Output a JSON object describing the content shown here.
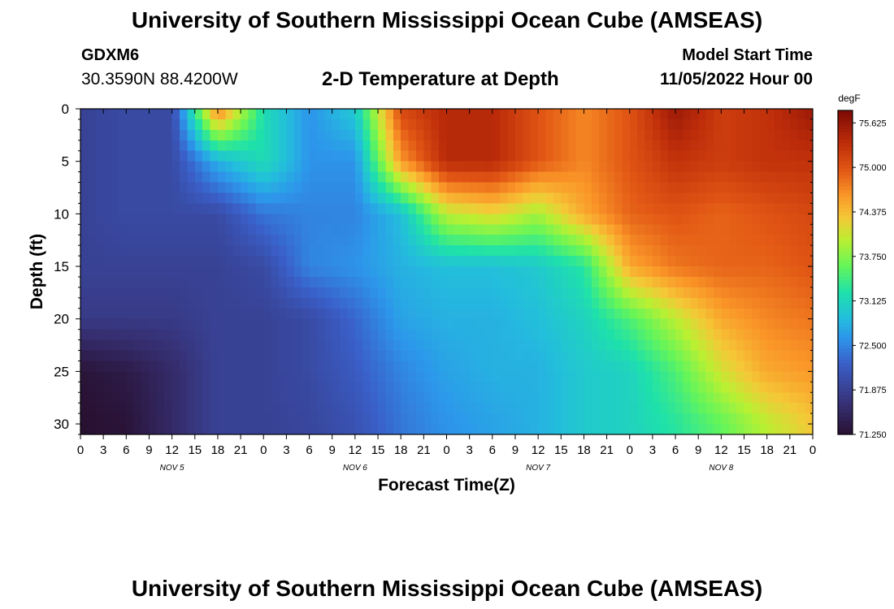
{
  "header": {
    "title": "University of Southern Mississippi Ocean Cube (AMSEAS)",
    "station_id": "GDXM6",
    "coordinates": "30.3590N  88.4200W",
    "subtitle": "2-D Temperature at Depth",
    "model_start_label": "Model Start Time",
    "model_start_value": "11/05/2022 Hour 00"
  },
  "footer": {
    "title": "University of Southern Mississippi Ocean Cube (AMSEAS)"
  },
  "chart_data": {
    "type": "heatmap",
    "title": "2-D Temperature at Depth",
    "xlabel": "Forecast Time(Z)",
    "ylabel": "Depth (ft)",
    "colorbar_label": "degF",
    "x_hours": [
      0,
      6,
      12,
      18,
      24,
      30,
      36,
      42,
      48,
      54,
      60,
      66,
      72,
      78,
      84,
      90,
      96
    ],
    "x_tick_labels": [
      "0",
      "3",
      "6",
      "9",
      "12",
      "15",
      "18",
      "21",
      "0",
      "3",
      "6",
      "9",
      "12",
      "15",
      "18",
      "21",
      "0",
      "3",
      "6",
      "9",
      "12",
      "15",
      "18",
      "21",
      "0",
      "3",
      "6",
      "9",
      "12",
      "15",
      "18",
      "21",
      "0"
    ],
    "day_labels": [
      "NOV 5",
      "NOV 6",
      "NOV 7",
      "NOV 8"
    ],
    "depths_ft": [
      0,
      5,
      10,
      15,
      20,
      25,
      30
    ],
    "y_ticks": [
      0,
      5,
      10,
      15,
      20,
      25,
      30
    ],
    "ylim": [
      0,
      31
    ],
    "xlim": [
      0,
      96
    ],
    "temperature_degF": [
      [
        71.9,
        72.0,
        72.0,
        74.8,
        73.2,
        72.6,
        73.0,
        75.1,
        75.4,
        75.4,
        75.0,
        74.7,
        75.0,
        75.6,
        75.2,
        75.3,
        75.6
      ],
      [
        71.9,
        72.0,
        72.0,
        72.8,
        73.2,
        72.6,
        72.6,
        74.6,
        75.4,
        75.4,
        75.0,
        74.7,
        75.0,
        75.3,
        75.2,
        75.3,
        75.3
      ],
      [
        71.9,
        72.0,
        72.0,
        72.0,
        72.4,
        72.5,
        72.5,
        72.9,
        74.0,
        74.2,
        73.9,
        74.5,
        74.9,
        75.0,
        74.9,
        75.0,
        75.1
      ],
      [
        71.9,
        71.9,
        71.9,
        71.9,
        72.0,
        72.5,
        72.6,
        72.8,
        72.9,
        72.9,
        73.0,
        73.3,
        74.5,
        74.8,
        74.9,
        74.9,
        75.0
      ],
      [
        71.8,
        71.8,
        71.8,
        71.9,
        71.9,
        72.0,
        72.3,
        72.7,
        72.8,
        72.8,
        72.9,
        73.1,
        73.5,
        74.0,
        74.5,
        74.7,
        74.8
      ],
      [
        71.3,
        71.4,
        71.6,
        71.9,
        71.9,
        72.0,
        72.2,
        72.5,
        72.7,
        72.8,
        72.8,
        73.0,
        73.1,
        73.5,
        74.1,
        74.5,
        74.6
      ],
      [
        71.25,
        71.3,
        71.6,
        71.9,
        71.9,
        71.95,
        72.1,
        72.4,
        72.6,
        72.7,
        72.8,
        73.0,
        73.1,
        73.3,
        73.6,
        74.0,
        74.3
      ]
    ],
    "colorbar": {
      "min": 71.25,
      "max": 75.8,
      "ticks": [
        "71.250",
        "71.875",
        "72.500",
        "73.125",
        "73.750",
        "74.375",
        "75.000",
        "75.625"
      ]
    }
  }
}
